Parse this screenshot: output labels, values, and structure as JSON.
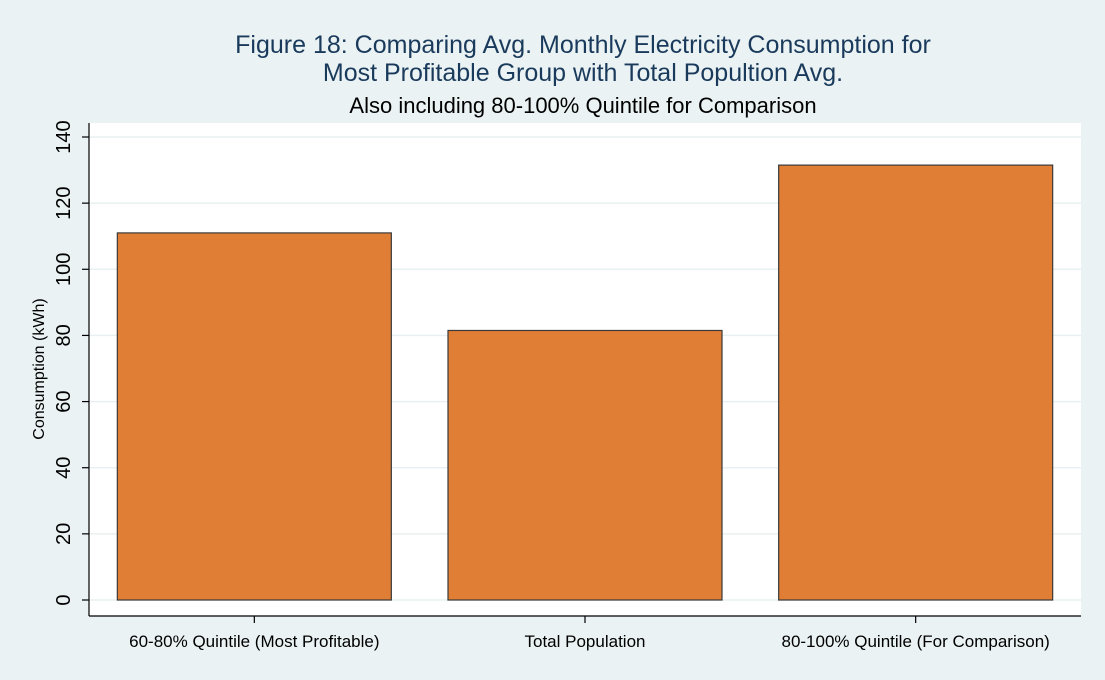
{
  "chart_data": {
    "type": "bar",
    "title_lines": [
      "Figure 18: Comparing Avg. Monthly Electricity Consumption for",
      "Most Profitable Group with Total Popultion Avg."
    ],
    "subtitle": "Also including 80-100% Quintile for Comparison",
    "categories": [
      "60-80% Quintile (Most Profitable)",
      "Total Population",
      "80-100% Quintile (For Comparison)"
    ],
    "values": [
      111,
      81.5,
      131.5
    ],
    "xlabel": "",
    "ylabel": "Consumption (kWh)",
    "ylim": [
      0,
      140
    ],
    "yticks": [
      0,
      20,
      40,
      60,
      80,
      100,
      120,
      140
    ],
    "grid": true,
    "colors": {
      "bar_fill": "#e07e35",
      "bar_stroke": "#3a3a3a",
      "plot_bg": "#ffffff",
      "page_bg": "#eaf2f3",
      "grid": "#e8f0f1",
      "title": "#1a3a5c"
    }
  }
}
